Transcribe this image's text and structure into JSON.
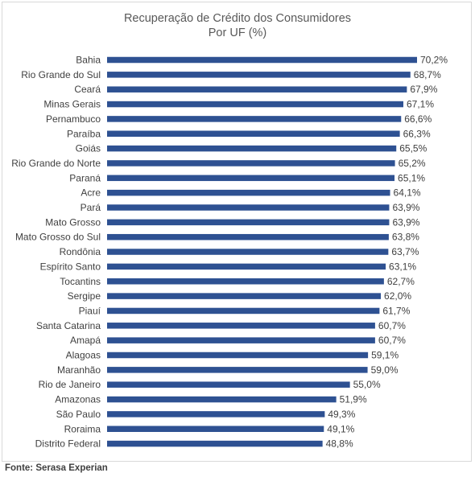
{
  "chart_data": {
    "type": "bar",
    "orientation": "horizontal",
    "title": "Recuperação de Crédito dos Consumidores",
    "subtitle": "Por UF (%)",
    "categories": [
      "Bahia",
      "Rio Grande do Sul",
      "Ceará",
      "Minas Gerais",
      "Pernambuco",
      "Paraíba",
      "Goiás",
      "Rio Grande do Norte",
      "Paraná",
      "Acre",
      "Pará",
      "Mato Grosso",
      "Mato Grosso do Sul",
      "Rondônia",
      "Espírito Santo",
      "Tocantins",
      "Sergipe",
      "Piauí",
      "Santa Catarina",
      "Amapá",
      "Alagoas",
      "Maranhão",
      "Rio de Janeiro",
      "Amazonas",
      "São Paulo",
      "Roraima",
      "Distrito Federal"
    ],
    "values": [
      70.2,
      68.7,
      67.9,
      67.1,
      66.6,
      66.3,
      65.5,
      65.2,
      65.1,
      64.1,
      63.9,
      63.9,
      63.8,
      63.7,
      63.1,
      62.7,
      62.0,
      61.7,
      60.7,
      60.7,
      59.1,
      59.0,
      55.0,
      51.9,
      49.3,
      49.1,
      48.8
    ],
    "value_labels": [
      "70,2%",
      "68,7%",
      "67,9%",
      "67,1%",
      "66,6%",
      "66,3%",
      "65,5%",
      "65,2%",
      "65,1%",
      "64,1%",
      "63,9%",
      "63,9%",
      "63,8%",
      "63,7%",
      "63,1%",
      "62,7%",
      "62,0%",
      "61,7%",
      "60,7%",
      "60,7%",
      "59,1%",
      "59,0%",
      "55,0%",
      "51,9%",
      "49,3%",
      "49,1%",
      "48,8%"
    ],
    "color": "#2e5192",
    "grid": false,
    "legend": false,
    "xlim": [
      0,
      70.2
    ]
  },
  "source": "Fonte: Serasa Experian"
}
